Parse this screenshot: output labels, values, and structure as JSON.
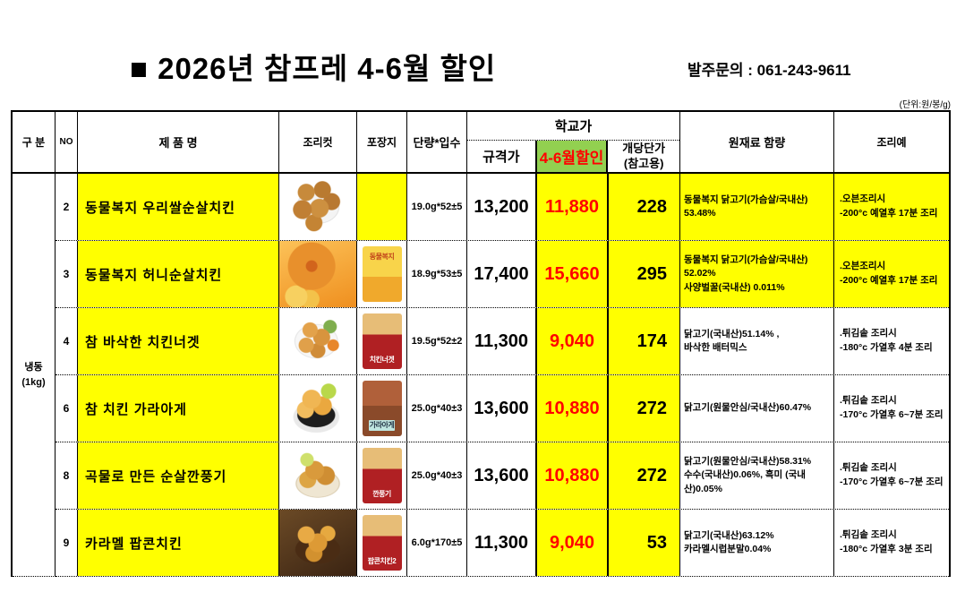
{
  "colors": {
    "highlight": "#FFFF00",
    "discount_header_bg": "#92D050",
    "discount_text": "#FF0000",
    "border": "#000000"
  },
  "title": "■ 2026년 참프레 4-6월 할인",
  "order_contact": "발주문의 : 061-243-9611",
  "unit_note": "(단위:원/봉/g)",
  "table": {
    "headers": {
      "category": "구 분",
      "no": "NO",
      "product": "제 품 명",
      "photo": "조리컷",
      "package": "포장지",
      "unit_qty": "단량*입수",
      "school_price": "학교가",
      "standard_price": "규격가",
      "discount_price": "4-6월할인",
      "unit_price_line1": "개당단가",
      "unit_price_line2": "(참고용)",
      "ingredients": "원재료 함량",
      "cooking": "조리예"
    },
    "category": {
      "label": "냉동",
      "sub": "(1kg)"
    },
    "rows": [
      {
        "no": "2",
        "product": "동물복지 우리쌀순살치킨",
        "unit_qty": "19.0g*52±5",
        "standard_price": "13,200",
        "discount_price": "11,880",
        "unit_price": "228",
        "ingredients": "동물복지 닭고기(가슴살/국내산)\n53.48%",
        "cooking": ".오븐조리시\n-200°c 예열후 17분 조리",
        "band": "yellow",
        "photo_style": "plate-nuggets",
        "package_style": "none",
        "package_label": ""
      },
      {
        "no": "3",
        "product": "동물복지 허니순살치킨",
        "unit_qty": "18.9g*53±5",
        "standard_price": "17,400",
        "discount_price": "15,660",
        "unit_price": "295",
        "ingredients": "동물복지 닭고기(가슴살/국내산)\n52.02%\n사양벌꿀(국내산) 0.011%",
        "cooking": ".오븐조리시\n-200°c 예열후 17분 조리",
        "band": "yellow",
        "photo_style": "honey",
        "package_style": "yellow-bag",
        "package_label": "동물복지"
      },
      {
        "no": "4",
        "product": "참 바삭한 치킨너겟",
        "unit_qty": "19.5g*52±2",
        "standard_price": "11,300",
        "discount_price": "9,040",
        "unit_price": "174",
        "ingredients": "닭고기(국내산)51.14% ,\n바삭한 배터믹스",
        "cooking": ".튀김솥 조리시\n-180°c 가열후 4분 조리",
        "band": "white",
        "photo_style": "plate-tilt",
        "package_style": "red-bag",
        "package_label": "치킨너겟"
      },
      {
        "no": "6",
        "product": "참 치킨 가라아게",
        "unit_qty": "25.0g*40±3",
        "standard_price": "13,600",
        "discount_price": "10,880",
        "unit_price": "272",
        "ingredients": "닭고기(원물안심/국내산)60.47%",
        "cooking": ".튀김솥 조리시\n-170°c 가열후 6~7분 조리",
        "band": "white",
        "photo_style": "bowl-black",
        "package_style": "brown-bag",
        "package_label": "가라아게"
      },
      {
        "no": "8",
        "product": "곡물로 만든  순살깐풍기",
        "unit_qty": "25.0g*40±3",
        "standard_price": "13,600",
        "discount_price": "10,880",
        "unit_price": "272",
        "ingredients": "닭고기(원물안심/국내산)58.31%\n수수(국내산)0.06%, 흑미 (국내산)0.05%",
        "cooking": ".튀김솥 조리시\n-170°c 가열후 6~7분 조리",
        "band": "white",
        "photo_style": "basket",
        "package_style": "red-bag",
        "package_label": "깐풍기"
      },
      {
        "no": "9",
        "product": "카라멜 팝콘치킨",
        "unit_qty": "6.0g*170±5",
        "standard_price": "11,300",
        "discount_price": "9,040",
        "unit_price": "53",
        "ingredients": "닭고기(국내산)63.12%\n카라멜시럽분말0.04%",
        "cooking": ".튀김솥 조리시\n-180°c 가열후 3분 조리",
        "band": "white",
        "photo_style": "bowl-brown",
        "package_style": "red-bag",
        "package_label": "팝콘치킨2"
      }
    ]
  }
}
